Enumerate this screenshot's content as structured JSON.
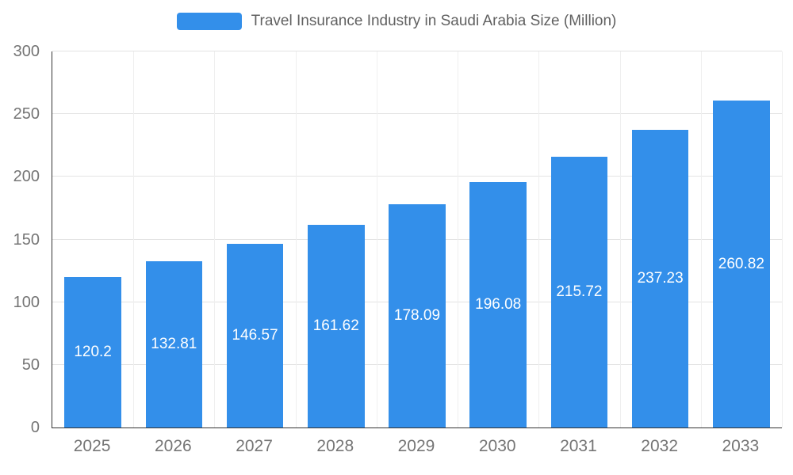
{
  "chart_data": {
    "type": "bar",
    "title": "Travel Insurance Industry in Saudi Arabia Size (Million)",
    "categories": [
      "2025",
      "2026",
      "2027",
      "2028",
      "2029",
      "2030",
      "2031",
      "2032",
      "2033"
    ],
    "values": [
      120.2,
      132.81,
      146.57,
      161.62,
      178.09,
      196.08,
      215.72,
      237.23,
      260.82
    ],
    "value_labels": [
      "120.2",
      "132.81",
      "146.57",
      "161.62",
      "178.09",
      "196.08",
      "215.72",
      "237.23",
      "260.82"
    ],
    "xlabel": "",
    "ylabel": "",
    "ylim": [
      0,
      300
    ],
    "yticks": [
      0,
      50,
      100,
      150,
      200,
      250,
      300
    ],
    "grid": "on",
    "legend_position": "top-center",
    "bar_color": "#338fea",
    "bar_label_color": "#ffffff",
    "axis_color": "#333333",
    "tick_label_color": "#757575",
    "gridline_color": "#e3e3e3"
  }
}
